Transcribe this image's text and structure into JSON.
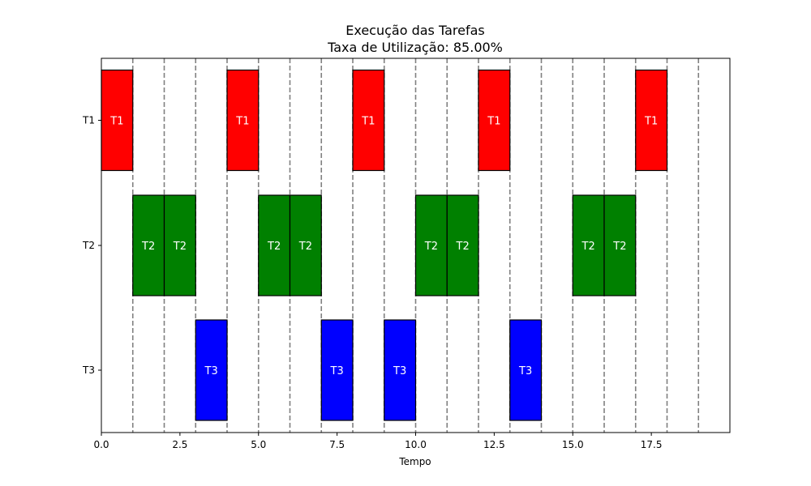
{
  "chart_data": {
    "type": "bar",
    "orientation": "gantt",
    "title": "Execução das Tarefas",
    "subtitle": "Taxa de Utilização: 85.00%",
    "xlabel": "Tempo",
    "ylabel": "",
    "xlim": [
      0,
      20
    ],
    "x_ticks": [
      "0.0",
      "2.5",
      "5.0",
      "7.5",
      "10.0",
      "12.5",
      "15.0",
      "17.5"
    ],
    "x_tick_values": [
      0,
      2.5,
      5,
      7.5,
      10,
      12.5,
      15,
      17.5
    ],
    "categories": [
      "T1",
      "T2",
      "T3"
    ],
    "grid": "vertical dashed lines at integer times 1-19",
    "grid_lines": [
      1,
      2,
      3,
      4,
      5,
      6,
      7,
      8,
      9,
      10,
      11,
      12,
      13,
      14,
      15,
      16,
      17,
      18,
      19
    ],
    "colors": {
      "T1": "#ff0000",
      "T2": "#008000",
      "T3": "#0000ff"
    },
    "series": [
      {
        "task": "T1",
        "intervals": [
          [
            0,
            1
          ],
          [
            4,
            5
          ],
          [
            8,
            9
          ],
          [
            12,
            13
          ],
          [
            17,
            18
          ]
        ],
        "labels": [
          "T1",
          "T1",
          "T1",
          "T1",
          "T1"
        ]
      },
      {
        "task": "T2",
        "intervals": [
          [
            1,
            2
          ],
          [
            2,
            3
          ],
          [
            5,
            6
          ],
          [
            6,
            7
          ],
          [
            10,
            11
          ],
          [
            11,
            12
          ],
          [
            15,
            16
          ],
          [
            16,
            17
          ]
        ],
        "labels": [
          "T2",
          "T2",
          "T2",
          "T2",
          "T2",
          "T2",
          "T2",
          "T2"
        ]
      },
      {
        "task": "T3",
        "intervals": [
          [
            3,
            4
          ],
          [
            7,
            8
          ],
          [
            9,
            10
          ],
          [
            13,
            14
          ]
        ],
        "labels": [
          "T3",
          "T3",
          "T3",
          "T3"
        ]
      }
    ]
  }
}
